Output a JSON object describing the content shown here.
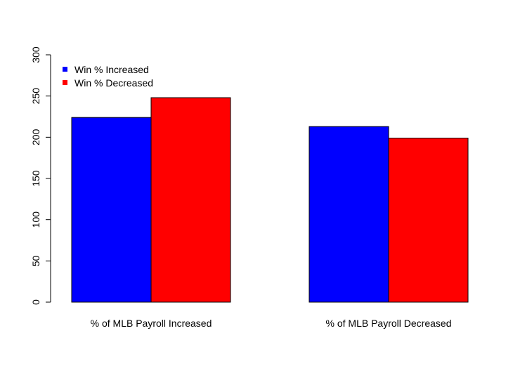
{
  "chart_data": {
    "type": "bar",
    "categories": [
      "% of MLB Payroll Increased",
      "% of MLB Payroll Decreased"
    ],
    "series": [
      {
        "name": "Win % Increased",
        "color": "#0000ff",
        "values": [
          224,
          213
        ]
      },
      {
        "name": "Win % Decreased",
        "color": "#ff0000",
        "values": [
          248,
          199
        ]
      }
    ],
    "title": "",
    "xlabel": "",
    "ylabel": "",
    "ylim": [
      0,
      300
    ],
    "yticks": [
      0,
      50,
      100,
      150,
      200,
      250,
      300
    ],
    "grid": false,
    "legend_position": "top-left"
  }
}
